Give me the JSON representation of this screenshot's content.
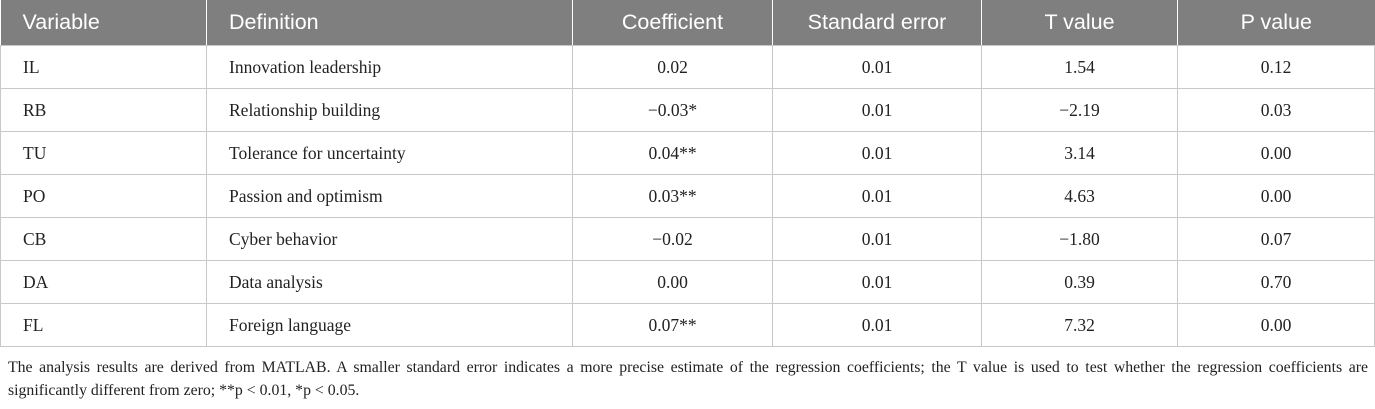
{
  "headers": [
    "Variable",
    "Definition",
    "Coefficient",
    "Standard error",
    "T value",
    "P value"
  ],
  "rows": [
    [
      "IL",
      "Innovation leadership",
      "0.02",
      "0.01",
      "1.54",
      "0.12"
    ],
    [
      "RB",
      "Relationship building",
      "−0.03*",
      "0.01",
      "−2.19",
      "0.03"
    ],
    [
      "TU",
      "Tolerance for uncertainty",
      "0.04**",
      "0.01",
      "3.14",
      "0.00"
    ],
    [
      "PO",
      "Passion and optimism",
      "0.03**",
      "0.01",
      "4.63",
      "0.00"
    ],
    [
      "CB",
      "Cyber behavior",
      "−0.02",
      "0.01",
      "−1.80",
      "0.07"
    ],
    [
      "DA",
      "Data analysis",
      "0.00",
      "0.01",
      "0.39",
      "0.70"
    ],
    [
      "FL",
      "Foreign language",
      "0.07**",
      "0.01",
      "7.32",
      "0.00"
    ]
  ],
  "footnote": "The analysis results are derived from MATLAB. A smaller standard error indicates a more precise estimate of the regression coefficients; the T value is used to test whether the regression coefficients are significantly different from zero; **p < 0.01, *p < 0.05."
}
